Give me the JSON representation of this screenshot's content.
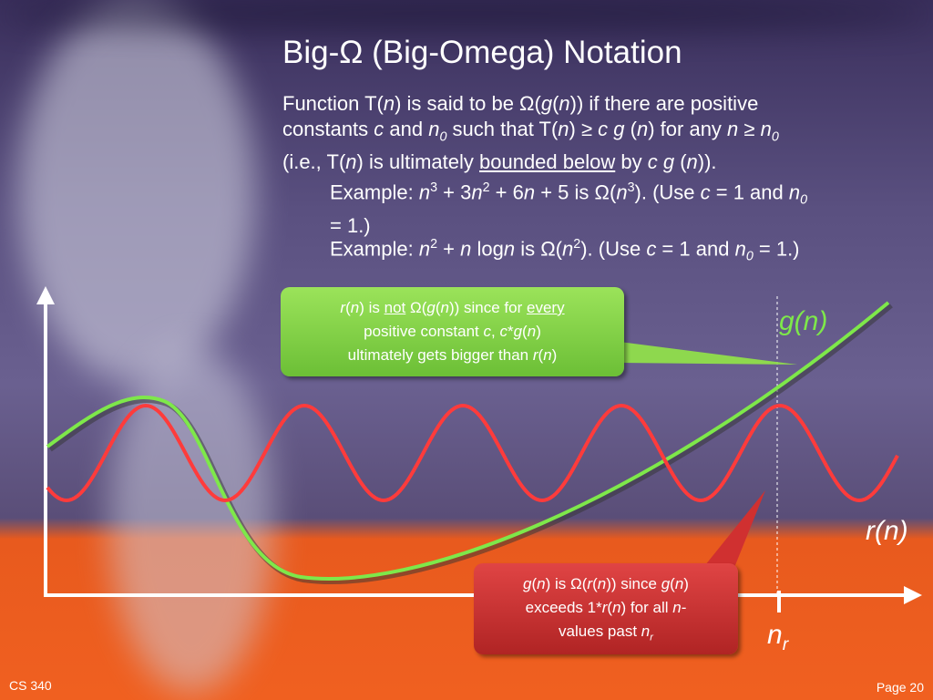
{
  "title": "Big-Ω (Big-Omega) Notation",
  "definition": [
    [
      "Function T(",
      "n",
      ") is said to be Ω(",
      "g",
      "(",
      "n",
      ")) if there are positive"
    ],
    [
      "constants ",
      "c",
      " and ",
      "n",
      "0",
      " such that T(",
      "n",
      ") ≥ ",
      "c g",
      " (",
      "n",
      ") for any ",
      "n",
      " ≥ ",
      "n",
      "0"
    ],
    [
      "(i.e., T(",
      "n",
      ") is ultimately ",
      "bounded below",
      " by ",
      "c g",
      " (",
      "n",
      "))."
    ]
  ],
  "examples": [
    [
      "Example: ",
      "n",
      "3",
      " + 3",
      "n",
      "2",
      " + 6",
      "n",
      " + 5 is Ω(",
      "n",
      "3",
      ").  (Use ",
      "c",
      " = 1 and ",
      "n",
      "0",
      "= 1.)"
    ],
    [
      "Example: ",
      "n",
      "2",
      " + ",
      "n",
      " log",
      "n",
      " is Ω(",
      "n",
      "2",
      ").  (Use ",
      "c",
      " = 1 and ",
      "n",
      "0",
      " = 1.)"
    ]
  ],
  "green_callout": [
    [
      "r",
      "(",
      "n",
      ") is ",
      "not",
      " Ω(",
      "g",
      "(",
      "n",
      ")) since for ",
      "every"
    ],
    [
      "positive constant ",
      "c",
      ", ",
      "c",
      "*",
      "g",
      "(",
      "n",
      ")"
    ],
    [
      "ultimately gets bigger than ",
      "r",
      "(",
      "n",
      ")"
    ]
  ],
  "red_callout": [
    [
      "g",
      "(",
      "n",
      ") is Ω(",
      "r",
      "(",
      "n",
      ")) since ",
      "g",
      "(",
      "n",
      ")"
    ],
    [
      "exceeds 1*",
      "r",
      "(",
      "n",
      ") for all ",
      "n",
      "-"
    ],
    [
      "values past ",
      "n",
      "r"
    ]
  ],
  "labels": {
    "g": "g(n)",
    "r": "r(n)",
    "n": "n",
    "n_sub": "r"
  },
  "footer": {
    "left": "CS 340",
    "right": "Page 20"
  }
}
